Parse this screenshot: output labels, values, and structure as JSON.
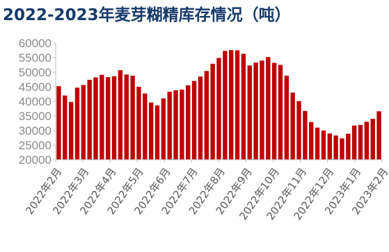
{
  "chart_data": {
    "type": "bar",
    "title": "2022-2023年麦芽糊精库存情况（吨）",
    "ylim": [
      20000,
      60000
    ],
    "yticks": [
      20000,
      25000,
      30000,
      35000,
      40000,
      45000,
      50000,
      55000,
      60000
    ],
    "ytick_labels": [
      "20000",
      "25000",
      "30000",
      "35000",
      "40000",
      "45000",
      "50000",
      "55000",
      "60000"
    ],
    "x_month_labels": [
      "2022年2月",
      "2022年3月",
      "2022年4月",
      "2022年5月",
      "2022年6月",
      "2022年7月",
      "2022年8月",
      "2022年9月",
      "2022年10月",
      "2022年11月",
      "2022年12月",
      "2023年1月",
      "2023年2月"
    ],
    "bar_color": "#c00000",
    "axis_color": "#bfbfbf",
    "title_color": "#173a6b",
    "grid": false,
    "legend": "none",
    "values": [
      45200,
      42000,
      39800,
      44700,
      45600,
      47400,
      48200,
      49100,
      48300,
      48600,
      50700,
      49200,
      48800,
      45000,
      42700,
      39600,
      38600,
      41000,
      43300,
      43800,
      44000,
      45500,
      47000,
      48500,
      50400,
      52900,
      54900,
      57300,
      57600,
      57500,
      56300,
      52300,
      53300,
      54000,
      55200,
      53200,
      52500,
      48800,
      43000,
      40100,
      36700,
      32900,
      31000,
      30000,
      29000,
      28300,
      27300,
      28900,
      31700,
      31900,
      33000,
      34000,
      36600
    ]
  }
}
